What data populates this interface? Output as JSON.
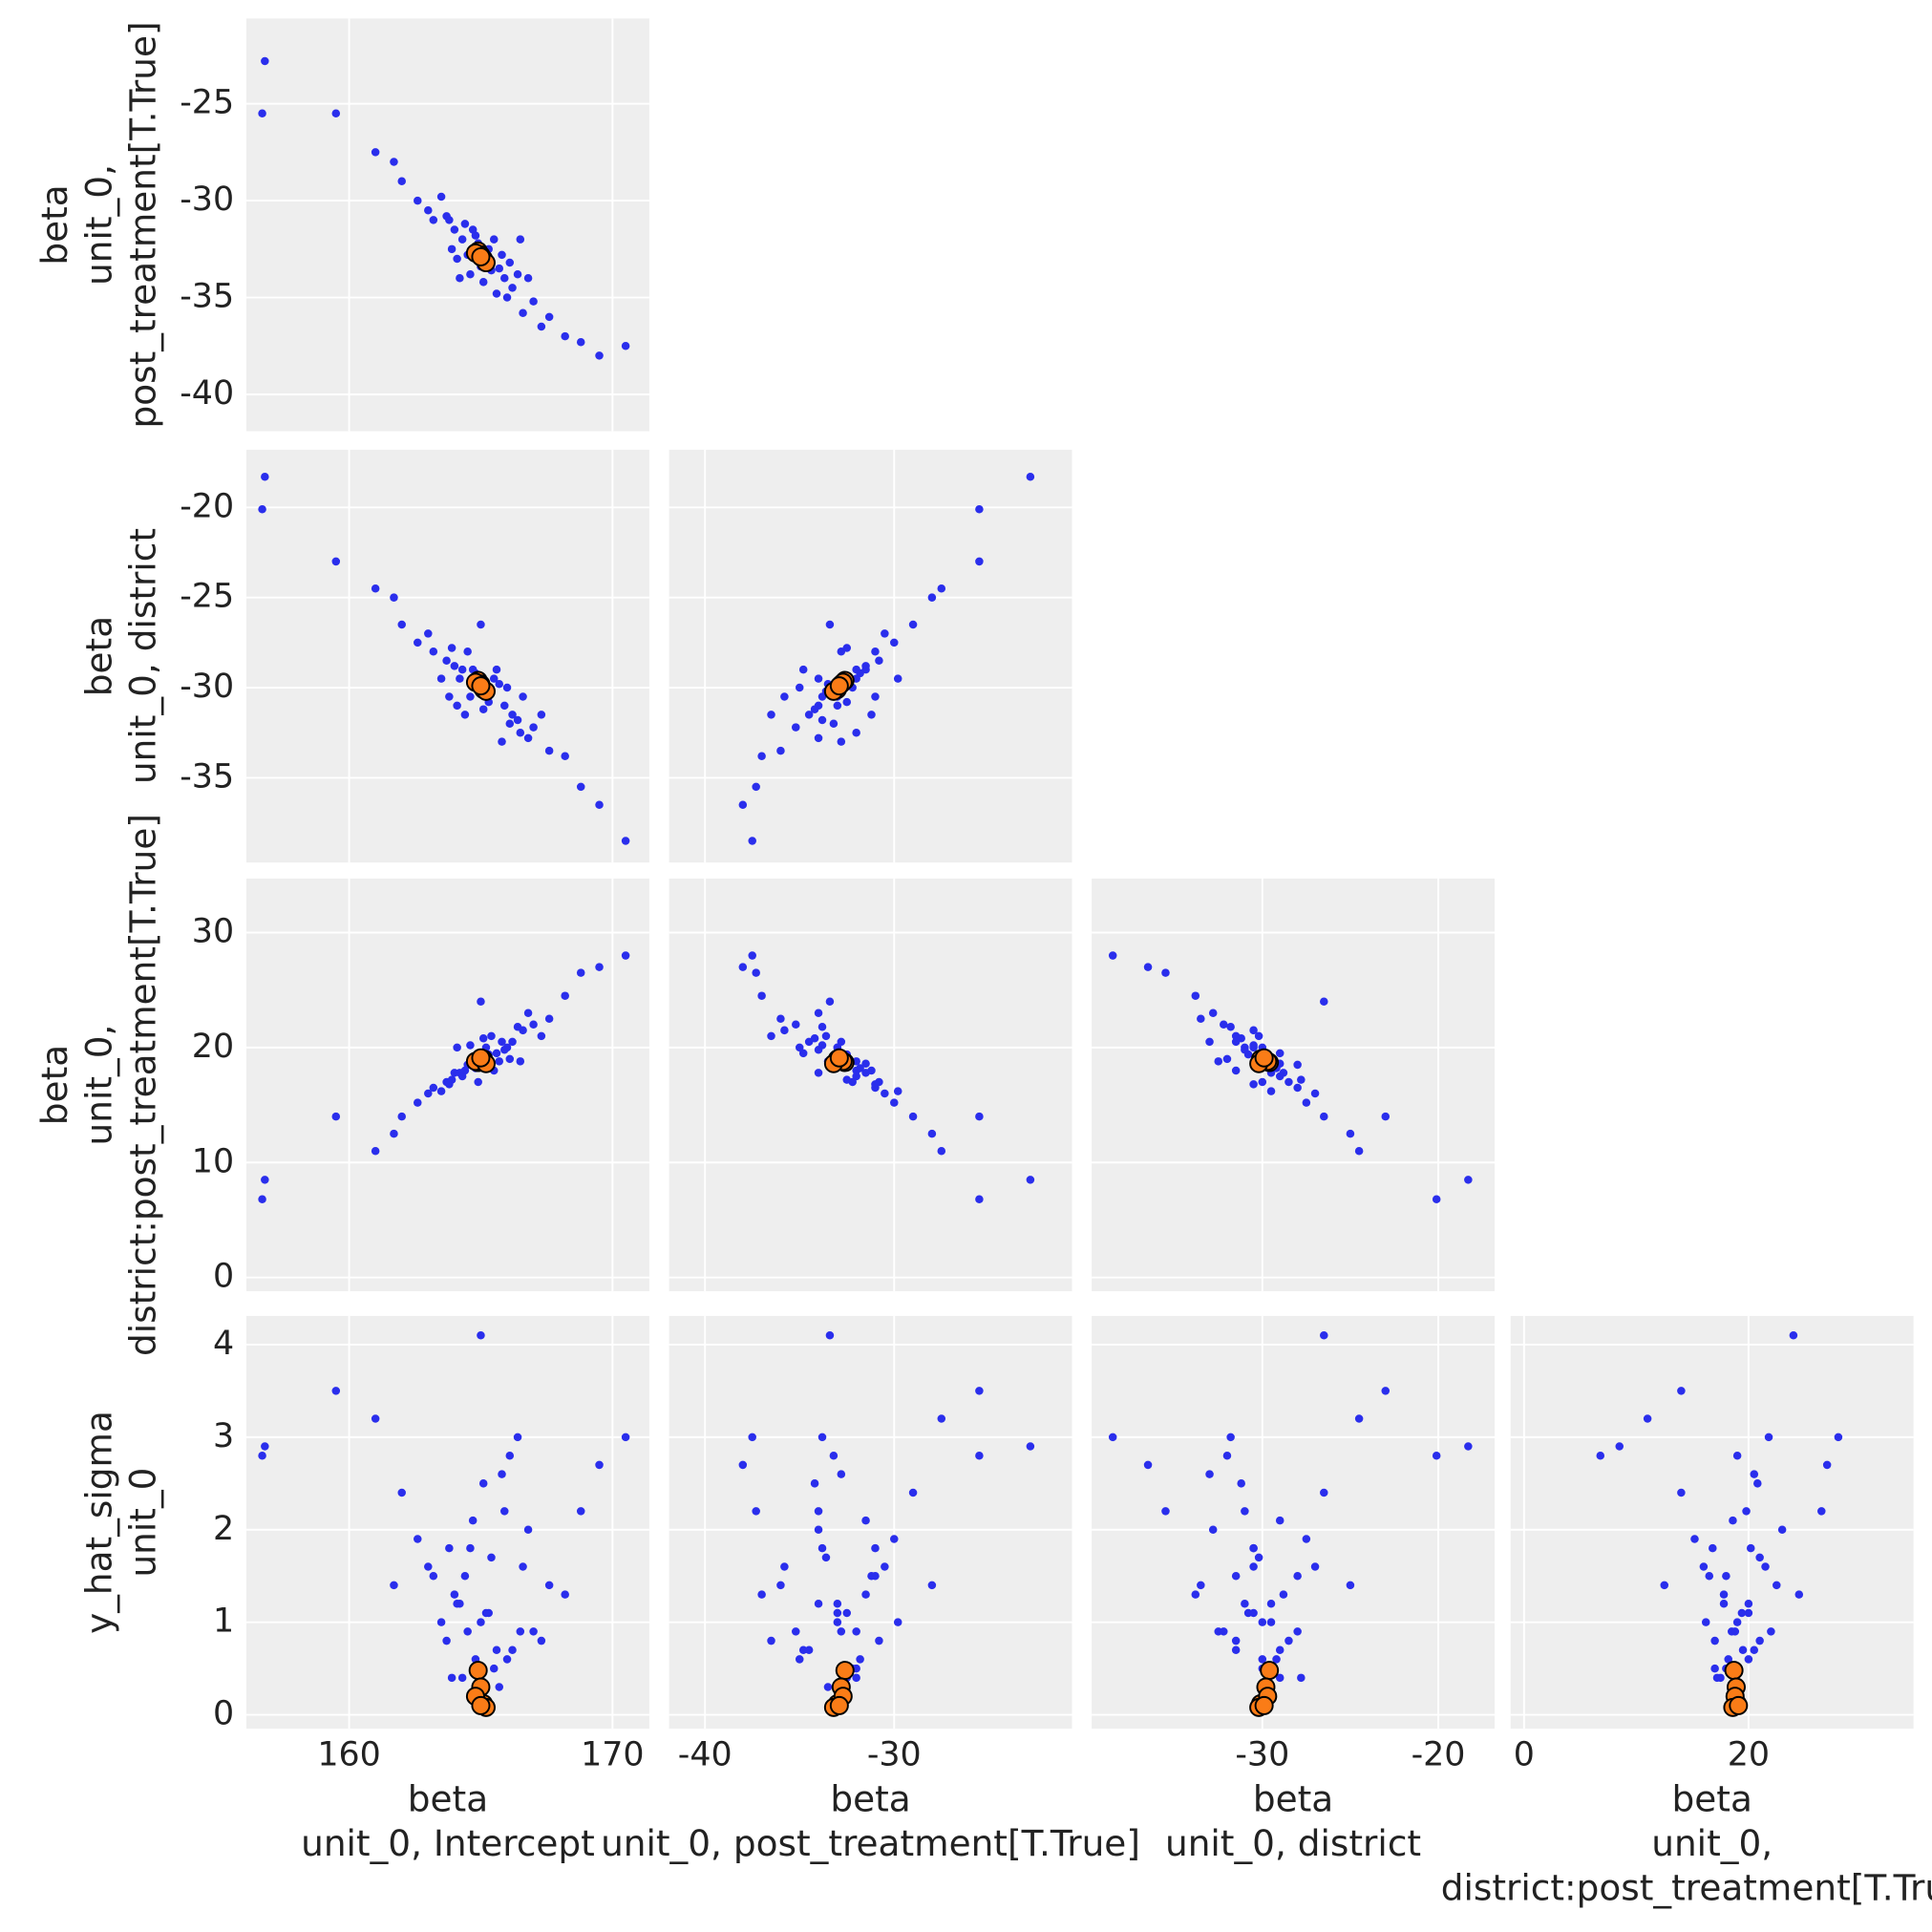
{
  "chart_data": {
    "type": "pair",
    "color": "#2a2eec",
    "divergent_color": "#fa7c17",
    "grid": true,
    "variables": [
      {
        "x_label": [
          "beta",
          "unit_0, Intercept"
        ],
        "lim": [
          156.1,
          171.4
        ],
        "x_ticks": [
          160,
          170
        ],
        "values": [
          165.0,
          166.2,
          164.0,
          165.5,
          164.6,
          167.0,
          163.2,
          165.9,
          164.3,
          165.3,
          166.6,
          163.7,
          165.1,
          164.8,
          167.6,
          162.6,
          165.7,
          164.1,
          166.1,
          164.5,
          165.4,
          163.5,
          166.8,
          164.9,
          168.2,
          162.0,
          165.6,
          164.4,
          166.4,
          163.9,
          165.2,
          164.7,
          167.3,
          163.0,
          165.8,
          164.2,
          169.5,
          161.0,
          166.0,
          163.8,
          170.5,
          156.8,
          156.7,
          159.5,
          168.8,
          161.7,
          165.0,
          166.5
        ],
        "divergent": [
          164.9,
          165.0,
          165.1,
          164.8,
          165.2,
          165.0
        ]
      },
      {
        "x_label": [
          "beta",
          "unit_0, post_treatment[T.True]"
        ],
        "y_label": [
          "beta",
          "unit_0,",
          "post_treatment[T.True]"
        ],
        "lim": [
          -41.9,
          -20.6
        ],
        "x_ticks": [
          -40,
          -30
        ],
        "y_ticks": [
          -40,
          -35,
          -30,
          -25
        ],
        "values": [
          -33.0,
          -34.5,
          -31.5,
          -32.0,
          -33.8,
          -35.2,
          -31.0,
          -34.0,
          -32.0,
          -32.5,
          -35.8,
          -30.8,
          -34.2,
          -31.8,
          -36.0,
          -30.0,
          -33.5,
          -33.0,
          -33.2,
          -32.8,
          -33.6,
          -29.8,
          -34.0,
          -32.2,
          -37.0,
          -29.0,
          -34.8,
          -31.2,
          -33.8,
          -32.5,
          -33.0,
          -31.5,
          -36.5,
          -30.5,
          -32.8,
          -34.0,
          -38.0,
          -27.5,
          -35.0,
          -31.0,
          -37.5,
          -22.8,
          -25.5,
          -25.5,
          -37.3,
          -28.0,
          -33.4,
          -32.0
        ],
        "divergent": [
          -32.6,
          -32.8,
          -33.0,
          -32.7,
          -33.2,
          -32.9
        ]
      },
      {
        "x_label": [
          "beta",
          "unit_0, district"
        ],
        "y_label": [
          "beta",
          "unit_0, district"
        ],
        "lim": [
          -39.7,
          -16.8
        ],
        "x_ticks": [
          -30,
          -20
        ],
        "y_ticks": [
          -35,
          -30,
          -25,
          -20
        ],
        "values": [
          -30.0,
          -31.5,
          -28.8,
          -29.5,
          -30.5,
          -32.2,
          -28.0,
          -31.0,
          -29.0,
          -30.8,
          -30.5,
          -28.5,
          -31.2,
          -29.2,
          -33.5,
          -27.5,
          -29.8,
          -31.0,
          -32.0,
          -28.0,
          -30.2,
          -29.5,
          -32.8,
          -30.0,
          -33.8,
          -26.5,
          -29.0,
          -31.5,
          -31.8,
          -27.8,
          -30.5,
          -29.0,
          -31.5,
          -27.0,
          -33.0,
          -29.5,
          -36.5,
          -24.5,
          -30.0,
          -30.5,
          -38.5,
          -18.3,
          -20.1,
          -23.0,
          -35.5,
          -25.0,
          -26.5,
          -32.5
        ],
        "divergent": [
          -29.6,
          -29.8,
          -30.1,
          -29.7,
          -30.2,
          -29.9
        ]
      },
      {
        "x_label": [
          "beta",
          "unit_0,",
          "district:post_treatment[T.True]"
        ],
        "y_label": [
          "beta",
          "unit_0,",
          "district:post_treatment[T.True]"
        ],
        "lim": [
          -1.2,
          34.7
        ],
        "x_ticks": [
          0,
          20
        ],
        "y_ticks": [
          0,
          10,
          20,
          30
        ],
        "values": [
          19.0,
          20.5,
          17.8,
          18.0,
          20.2,
          22.0,
          16.5,
          19.8,
          17.5,
          19.4,
          21.5,
          17.0,
          20.8,
          18.2,
          22.5,
          15.2,
          18.8,
          20.0,
          19.0,
          18.5,
          21.0,
          16.2,
          23.0,
          17.0,
          24.5,
          14.0,
          19.5,
          18.0,
          21.8,
          17.2,
          20.0,
          18.6,
          21.0,
          16.0,
          20.5,
          17.8,
          27.0,
          11.0,
          20.0,
          16.8,
          28.0,
          8.5,
          6.8,
          14.0,
          26.5,
          12.5,
          24.0,
          18.8
        ],
        "divergent": [
          18.7,
          18.9,
          19.0,
          18.8,
          18.6,
          19.1
        ]
      },
      {
        "y_label": [
          "y_hat_sigma",
          "unit_0"
        ],
        "lim": [
          -0.15,
          4.31
        ],
        "y_ticks": [
          0,
          1,
          2,
          3,
          4
        ],
        "values": [
          1.0,
          0.7,
          1.3,
          0.5,
          1.8,
          0.9,
          1.5,
          2.2,
          0.4,
          1.1,
          1.6,
          0.8,
          2.5,
          0.6,
          1.4,
          1.9,
          0.3,
          1.2,
          2.8,
          0.9,
          1.7,
          1.0,
          2.0,
          0.5,
          1.3,
          2.4,
          0.7,
          1.5,
          3.0,
          0.4,
          1.1,
          2.1,
          0.8,
          1.6,
          2.6,
          1.2,
          2.7,
          3.2,
          0.6,
          1.8,
          3.0,
          2.9,
          2.8,
          3.5,
          2.2,
          1.4,
          4.1,
          0.9
        ],
        "divergent": [
          0.48,
          0.3,
          0.12,
          0.2,
          0.08,
          0.1
        ]
      }
    ]
  }
}
